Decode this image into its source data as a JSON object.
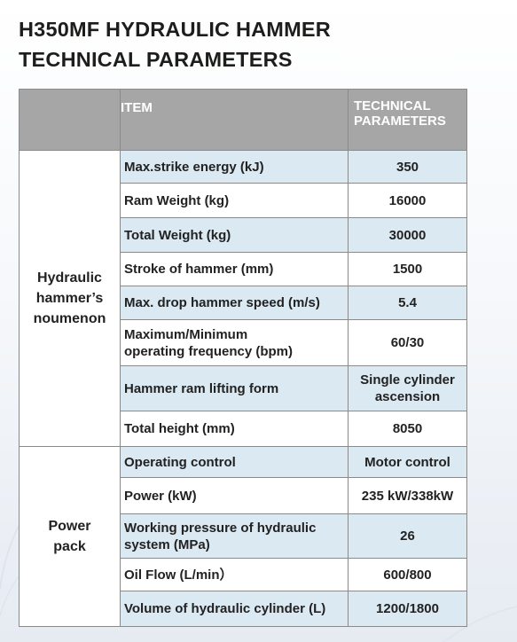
{
  "title": {
    "line1": "H350MF HYDRAULIC HAMMER",
    "line2": "TECHNICAL PARAMETERS"
  },
  "table": {
    "headers": {
      "item": "ITEM",
      "tech_line1": "TECHNICAL",
      "tech_line2": "PARAMETERS"
    },
    "groups": [
      {
        "label": [
          "Hydraulic",
          "hammer’s",
          "noumenon"
        ]
      },
      {
        "label": [
          "Power",
          "pack"
        ]
      }
    ],
    "rows": [
      {
        "item": [
          "Max.strike energy (kJ)"
        ],
        "value": [
          "350"
        ],
        "shaded": true
      },
      {
        "item": [
          "Ram Weight (kg)"
        ],
        "value": [
          "16000"
        ],
        "shaded": false
      },
      {
        "item": [
          "Total Weight (kg)"
        ],
        "value": [
          "30000"
        ],
        "shaded": true
      },
      {
        "item": [
          "Stroke of hammer (mm)"
        ],
        "value": [
          "1500"
        ],
        "shaded": false
      },
      {
        "item": [
          "Max. drop hammer speed (m/s)"
        ],
        "value": [
          "5.4"
        ],
        "shaded": true
      },
      {
        "item": [
          "Maximum/Minimum",
          "operating frequency (bpm)"
        ],
        "value": [
          "60/30"
        ],
        "shaded": false
      },
      {
        "item": [
          "Hammer ram lifting form"
        ],
        "value": [
          "Single cylinder",
          "ascension"
        ],
        "shaded": true
      },
      {
        "item": [
          "Total height (mm)"
        ],
        "value": [
          "8050"
        ],
        "shaded": false
      },
      {
        "item": [
          "Operating control"
        ],
        "value": [
          "Motor control"
        ],
        "shaded": true
      },
      {
        "item": [
          "Power (kW)"
        ],
        "value": [
          "235 kW/338kW"
        ],
        "shaded": false
      },
      {
        "item": [
          "Working pressure of hydraulic",
          "system (MPa)"
        ],
        "value": [
          "26"
        ],
        "shaded": true
      },
      {
        "item": [
          "Oil Flow (L/min）"
        ],
        "value": [
          "600/800"
        ],
        "shaded": false
      },
      {
        "item": [
          "Volume of hydraulic cylinder (L)"
        ],
        "value": [
          "1200/1800"
        ],
        "shaded": true
      }
    ]
  }
}
